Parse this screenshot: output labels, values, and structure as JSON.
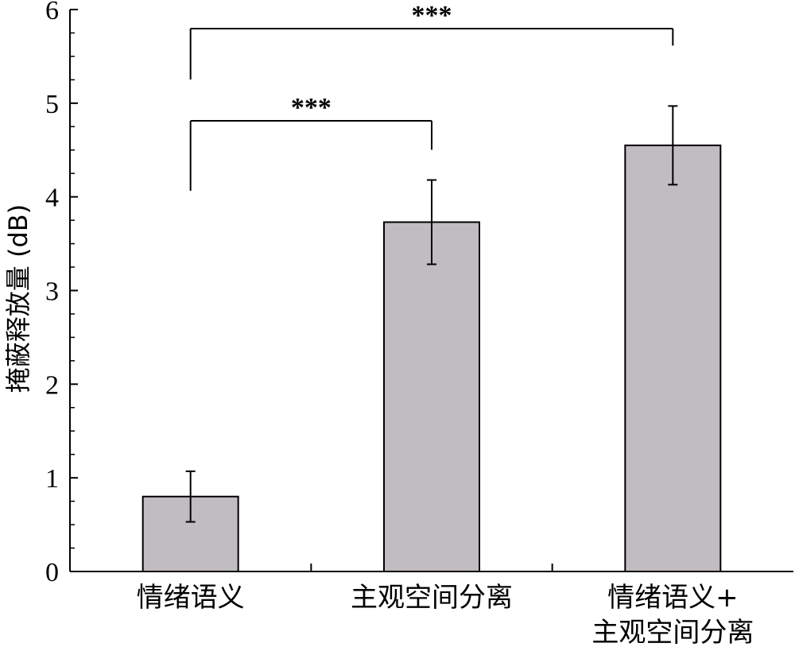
{
  "chart_data": {
    "type": "bar",
    "categories": [
      [
        "情绪语义"
      ],
      [
        "主观空间分离"
      ],
      [
        "情绪语义+",
        "主观空间分离"
      ]
    ],
    "values": [
      0.8,
      3.73,
      4.55
    ],
    "errors": [
      0.27,
      0.45,
      0.42
    ],
    "ylabel": "掩蔽释放量 (dB)",
    "xlabel": "",
    "ylim": [
      0,
      6
    ],
    "yticks": [
      0,
      1,
      2,
      3,
      4,
      5,
      6
    ],
    "bar_color": "#c1bcc1",
    "grid": false,
    "significance": [
      {
        "from": 0,
        "to": 1,
        "label": "***"
      },
      {
        "from": 0,
        "to": 2,
        "label": "***"
      }
    ]
  }
}
